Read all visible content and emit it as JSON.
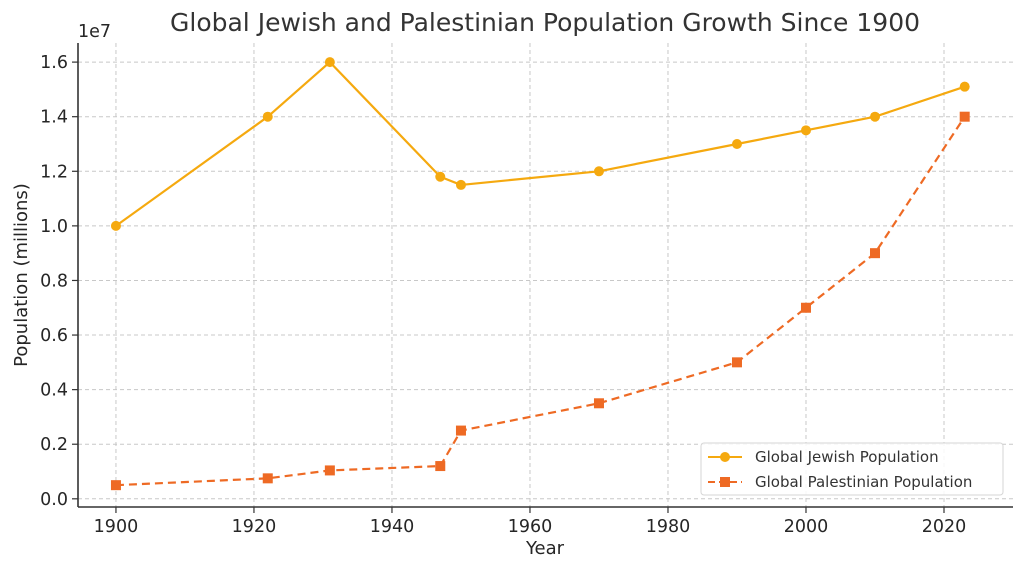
{
  "chart_data": {
    "type": "line",
    "title": "Global Jewish and Palestinian Population Growth Since 1900",
    "xlabel": "Year",
    "ylabel": "Population (millions)",
    "y_offset_label": "1e7",
    "xlim": [
      1894.5,
      2030
    ],
    "ylim": [
      -0.03,
      1.67
    ],
    "x_ticks": [
      1900,
      1920,
      1940,
      1960,
      1980,
      2000,
      2020
    ],
    "x_tick_labels": [
      "1900",
      "1920",
      "1940",
      "1960",
      "1980",
      "2000",
      "2020"
    ],
    "y_ticks": [
      0.0,
      0.2,
      0.4,
      0.6,
      0.8,
      1.0,
      1.2,
      1.4,
      1.6
    ],
    "y_tick_labels": [
      "0.0",
      "0.2",
      "0.4",
      "0.6",
      "0.8",
      "1.0",
      "1.2",
      "1.4",
      "1.6"
    ],
    "grid": true,
    "legend_position": "lower-right",
    "series": [
      {
        "name": "Global Jewish Population",
        "color": "#F5A90F",
        "marker": "circle",
        "linestyle": "solid",
        "x": [
          1900,
          1922,
          1931,
          1947,
          1950,
          1970,
          1990,
          2000,
          2010,
          2023
        ],
        "values": [
          1.0,
          1.4,
          1.6,
          1.18,
          1.15,
          1.2,
          1.3,
          1.35,
          1.4,
          1.51
        ]
      },
      {
        "name": "Global Palestinian Population",
        "color": "#EE6A24",
        "marker": "square",
        "linestyle": "dashed",
        "x": [
          1900,
          1922,
          1931,
          1947,
          1950,
          1970,
          1990,
          2000,
          2010,
          2023
        ],
        "values": [
          0.05,
          0.075,
          0.104,
          0.12,
          0.25,
          0.35,
          0.5,
          0.7,
          0.9,
          1.4
        ]
      }
    ]
  }
}
